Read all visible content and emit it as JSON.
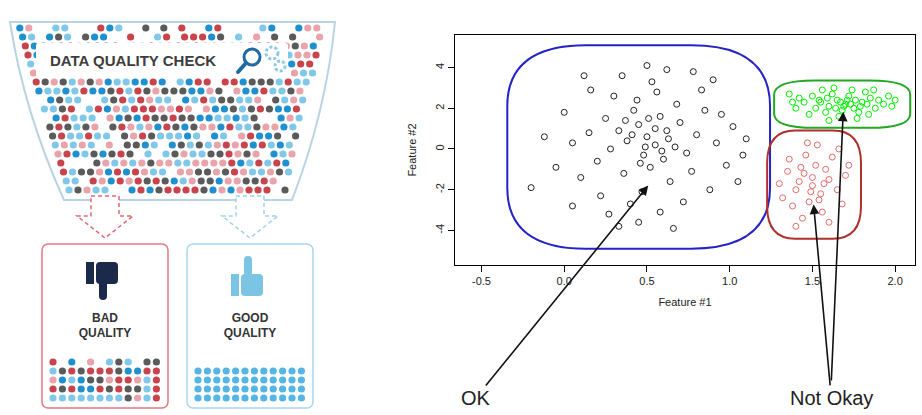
{
  "diagram": {
    "funnel": {
      "label": "DATA QUALITY CHECK"
    },
    "outputs": [
      {
        "label": "BAD QUALITY"
      },
      {
        "label": "GOOD QUALITY"
      }
    ]
  },
  "chart_data": {
    "type": "scatter",
    "marker": "circle-open",
    "grid": false,
    "xlabel": "Feature #1",
    "ylabel": "Feature #2",
    "xlim": [
      -0.66,
      2.12
    ],
    "ylim": [
      -5.7,
      5.6
    ],
    "xticks": [
      -0.5,
      {
        "value": 0,
        "label": "0.0"
      },
      0.5,
      {
        "value": 1,
        "label": "1.0"
      },
      1.5,
      {
        "value": 2,
        "label": "2.0"
      }
    ],
    "yticks": [
      -4,
      -2,
      0,
      2,
      4
    ],
    "annotations": [
      {
        "text": "OK"
      },
      {
        "text": "Not Okay"
      }
    ],
    "series": [
      {
        "color": "#222222",
        "x": [
          0.5,
          0.45,
          0.55,
          0.62,
          0.38,
          0.48,
          0.58,
          0.42,
          0.67,
          0.33,
          0.52,
          0.6,
          0.44,
          0.7,
          0.28,
          0.56,
          0.36,
          0.74,
          0.25,
          0.64,
          0.47,
          0.8,
          0.2,
          0.53,
          0.4,
          0.85,
          0.15,
          0.68,
          0.3,
          0.77,
          0.58,
          0.92,
          0.1,
          0.35,
          0.62,
          0.98,
          0.05,
          0.88,
          0.22,
          1.02,
          0.45,
          0.0,
          0.72,
          0.16,
          1.08,
          -0.05,
          0.83,
          0.27,
          0.95,
          -0.12,
          0.5,
          0.66,
          0.12,
          1.1,
          -0.2,
          0.9,
          0.33,
          0.78,
          0.05,
          1.05,
          0.55,
          0.49,
          0.41,
          0.59,
          0.51,
          0.46,
          0.63,
          0.37
        ],
        "y": [
          0.6,
          1.2,
          0.2,
          0.9,
          0.4,
          -0.3,
          1.6,
          1.9,
          0.1,
          0.9,
          -0.9,
          -0.5,
          2.4,
          1.3,
          0.0,
          2.8,
          -1.2,
          -0.2,
          1.5,
          -1.6,
          -2.1,
          0.7,
          -0.6,
          3.3,
          -2.7,
          1.9,
          0.8,
          2.2,
          2.6,
          -1.1,
          -3.1,
          0.3,
          -1.4,
          3.6,
          3.9,
          -0.8,
          0.3,
          -2.0,
          -2.3,
          1.1,
          -3.6,
          1.8,
          -2.6,
          2.9,
          -0.3,
          -0.9,
          2.9,
          -3.2,
          1.7,
          0.6,
          4.1,
          -3.9,
          3.6,
          0.5,
          -1.9,
          3.4,
          -3.8,
          3.8,
          -2.8,
          -1.6,
          1.0,
          0.1,
          0.7,
          -0.1,
          1.5,
          -0.7,
          0.5,
          1.4
        ]
      },
      {
        "color": "#e36a6a",
        "x": [
          1.5,
          1.45,
          1.55,
          1.6,
          1.4,
          1.52,
          1.48,
          1.58,
          1.42,
          1.65,
          1.35,
          1.62,
          1.38,
          1.56,
          1.46,
          1.7,
          1.32,
          1.68,
          1.44,
          1.53,
          1.36,
          1.72,
          1.3,
          1.6,
          1.5,
          1.47,
          1.4,
          1.66,
          1.54,
          1.43,
          1.57,
          1.49
        ],
        "y": [
          -1.8,
          -1.2,
          -2.2,
          -1.5,
          -2.0,
          -0.8,
          -2.6,
          -1.0,
          -1.6,
          -2.0,
          -1.1,
          -0.4,
          -2.8,
          -3.1,
          -0.3,
          -1.3,
          -2.4,
          -2.7,
          -3.4,
          0.2,
          -0.5,
          -0.8,
          -1.7,
          -3.6,
          -1.4,
          0.3,
          -3.8,
          0.0,
          -2.5,
          -0.9,
          -1.7,
          -2.1
        ]
      },
      {
        "color": "#00ee00",
        "x": [
          1.7,
          1.65,
          1.75,
          1.68,
          1.72,
          1.6,
          1.8,
          1.62,
          1.78,
          1.55,
          1.85,
          1.58,
          1.82,
          1.5,
          1.88,
          1.52,
          1.9,
          1.45,
          1.74,
          1.66,
          1.93,
          1.42,
          1.77,
          1.56,
          1.96,
          1.4,
          1.84,
          1.48,
          1.98,
          1.63,
          1.38,
          1.87,
          1.6,
          1.71,
          1.69,
          1.73,
          1.67,
          1.76,
          1.64,
          1.79,
          1.36,
          2.0,
          1.54,
          1.83,
          1.59
        ],
        "y": [
          2.2,
          2.4,
          2.0,
          1.9,
          2.6,
          2.1,
          2.3,
          2.7,
          1.8,
          2.3,
          2.5,
          1.8,
          2.8,
          2.6,
          2.0,
          2.0,
          2.4,
          2.3,
          2.9,
          1.6,
          2.2,
          2.5,
          1.5,
          2.9,
          2.6,
          2.0,
          1.7,
          1.7,
          2.1,
          3.0,
          2.3,
          2.9,
          1.4,
          2.4,
          2.1,
          2.2,
          2.3,
          2.4,
          2.0,
          2.1,
          2.7,
          2.4,
          2.4,
          2.2,
          2.5
        ]
      }
    ]
  }
}
